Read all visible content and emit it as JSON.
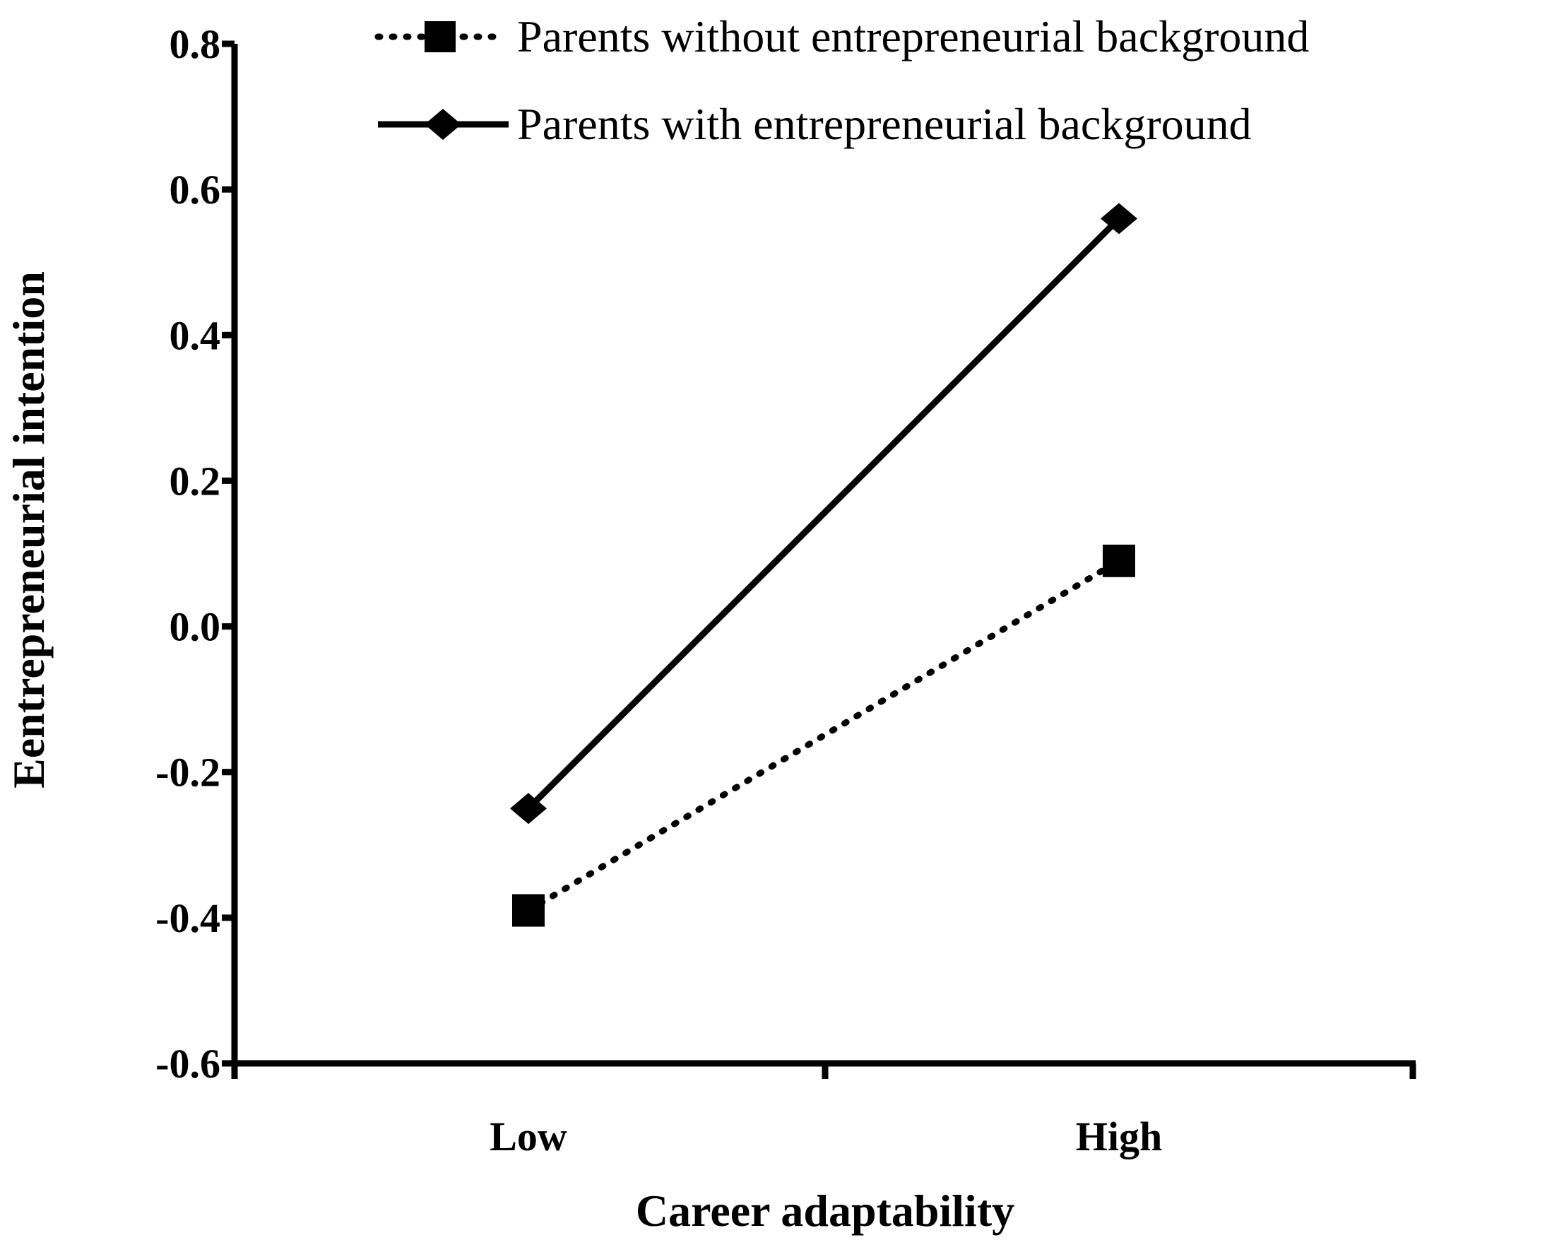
{
  "chart_data": {
    "type": "line",
    "xlabel": "Career adaptability",
    "ylabel": "Eentrepreneurial intention",
    "categories": [
      "Low",
      "High"
    ],
    "ylim": [
      -0.6,
      0.8
    ],
    "yticks": [
      "0.8",
      "0.6",
      "0.4",
      "0.2",
      "0.0",
      "-0.2",
      "-0.4",
      "-0.6"
    ],
    "grid": false,
    "legend_position": "top-right",
    "series": [
      {
        "name": "Parents without entrepreneurial background",
        "values": [
          -0.39,
          0.09
        ],
        "line_style": "dotted",
        "marker": "square",
        "color": "#000000"
      },
      {
        "name": "Parents with entrepreneurial background",
        "values": [
          -0.25,
          0.56
        ],
        "line_style": "solid",
        "marker": "diamond",
        "color": "#000000"
      }
    ]
  }
}
